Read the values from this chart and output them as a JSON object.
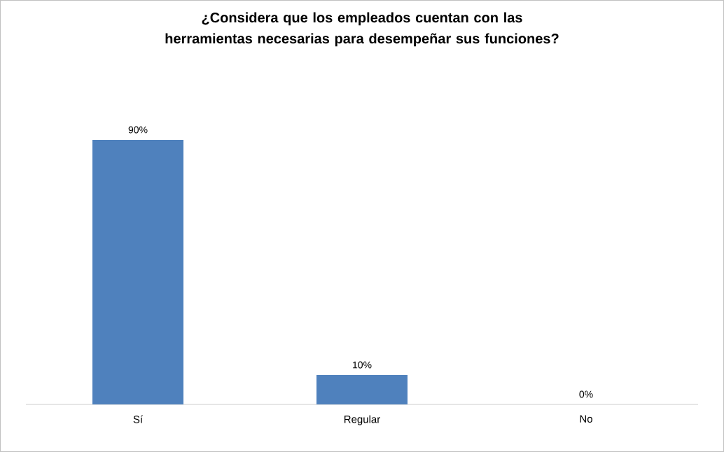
{
  "chart_data": {
    "type": "bar",
    "title": "¿Considera que los empleados cuentan con las herramientas necesarias para desempeñar sus funciones?",
    "categories": [
      "Sí",
      "Regular",
      "No"
    ],
    "values": [
      90,
      10,
      0
    ],
    "value_labels": [
      "90%",
      "10%",
      "0%"
    ],
    "color": "#4f81bd"
  }
}
